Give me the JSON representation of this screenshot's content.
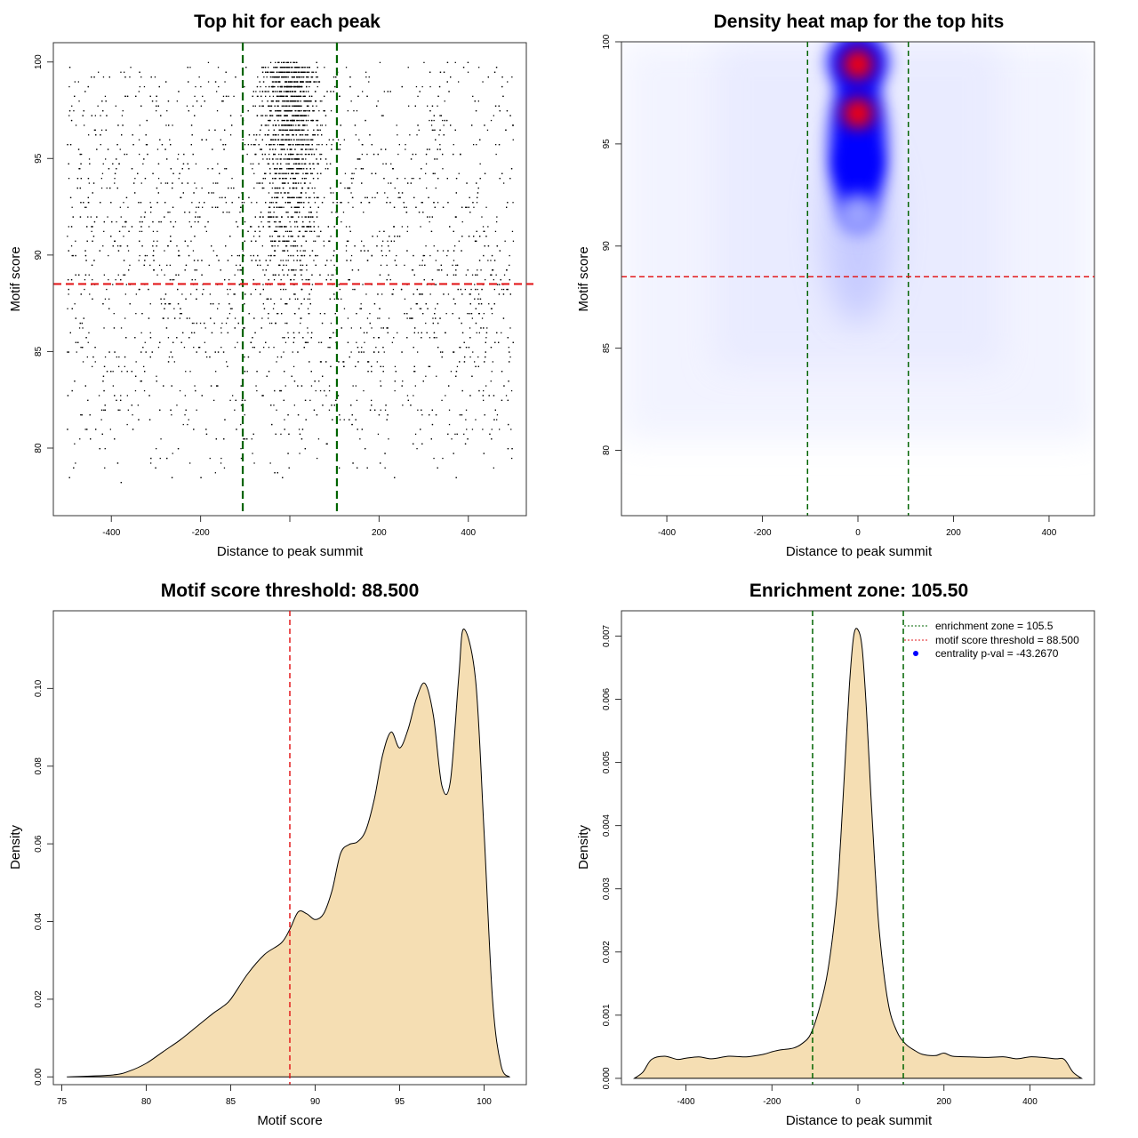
{
  "chart_data": [
    {
      "id": "scatter",
      "type": "scatter",
      "title": "Top hit for each peak",
      "xlabel": "Distance to peak summit",
      "ylabel": "Motif score",
      "xlim": [
        -530,
        530
      ],
      "ylim": [
        76.5,
        101
      ],
      "xticks": [
        -400,
        -200,
        0,
        200,
        400
      ],
      "xtick_labels": [
        "-400",
        "-200",
        "",
        "200",
        "400"
      ],
      "yticks": [
        80,
        85,
        90,
        95,
        100
      ],
      "ytick_labels": [
        "80",
        "85",
        "90",
        "95",
        "100"
      ],
      "vlines": [
        -105.5,
        105.5
      ],
      "vline_color": "#006400",
      "hline": 88.5,
      "hline_color": "#e31a1c",
      "points_description": "One point per peak: x in [-500, 500] distance to summit, y motif score; points concentrated near x = 0 with high scores, sparse below 85."
    },
    {
      "id": "heatmap",
      "type": "heatmap",
      "title": "Density heat map for the top hits",
      "xlabel": "Distance to peak summit",
      "ylabel": "Motif score",
      "xlim": [
        -495,
        495
      ],
      "ylim": [
        76.8,
        100
      ],
      "xticks": [
        -400,
        -200,
        0,
        200,
        400
      ],
      "xtick_labels": [
        "-400",
        "-200",
        "0",
        "200",
        "400"
      ],
      "yticks": [
        80,
        85,
        90,
        95,
        100
      ],
      "ytick_labels": [
        "80",
        "85",
        "90",
        "95",
        "100"
      ],
      "vlines": [
        -105.5,
        105.5
      ],
      "vline_color": "#006400",
      "hline": 88.5,
      "hline_color": "#e31a1c",
      "hotspots": [
        {
          "x": 0,
          "y": 98.9,
          "level": "red"
        },
        {
          "x": 0,
          "y": 96.5,
          "level": "red"
        },
        {
          "x": 0,
          "y": 94.0,
          "level": "blue"
        },
        {
          "x": 0,
          "y": 91.5,
          "level": "blue-light"
        }
      ],
      "color_scale": [
        "#ffffff",
        "#0000ff",
        "#ff0000"
      ]
    },
    {
      "id": "score_density",
      "type": "area",
      "title": "Motif score threshold: 88.500",
      "xlabel": "Motif score",
      "ylabel": "Density",
      "xlim": [
        74.5,
        102.5
      ],
      "ylim": [
        -0.002,
        0.12
      ],
      "xticks": [
        75,
        80,
        85,
        90,
        95,
        100
      ],
      "xtick_labels": [
        "75",
        "80",
        "85",
        "90",
        "95",
        "100"
      ],
      "yticks": [
        0,
        0.02,
        0.04,
        0.06,
        0.08,
        0.1
      ],
      "ytick_labels": [
        "0.00",
        "0.02",
        "0.04",
        "0.06",
        "0.08",
        "0.10"
      ],
      "x": [
        75.3,
        78,
        79,
        80,
        81,
        82,
        83,
        84,
        84.5,
        85,
        86,
        87,
        88,
        88.5,
        89,
        89.5,
        90,
        90.5,
        91,
        91.5,
        92,
        92.5,
        93,
        93.5,
        94,
        94.5,
        95,
        95.5,
        96,
        96.5,
        97,
        97.5,
        98,
        98.5,
        98.8,
        99.5,
        100,
        100.5,
        101,
        101.5
      ],
      "y": [
        0,
        0.0005,
        0.0015,
        0.0035,
        0.0065,
        0.0095,
        0.013,
        0.0165,
        0.018,
        0.02,
        0.0265,
        0.0315,
        0.0345,
        0.038,
        0.0425,
        0.042,
        0.0405,
        0.042,
        0.048,
        0.0575,
        0.0598,
        0.0605,
        0.0635,
        0.0715,
        0.083,
        0.0888,
        0.0847,
        0.0895,
        0.0975,
        0.1013,
        0.093,
        0.075,
        0.076,
        0.103,
        0.1153,
        0.102,
        0.063,
        0.02,
        0.003,
        0
      ],
      "fill": "#f5deb3",
      "vline": 88.5,
      "vline_color": "#e31a1c"
    },
    {
      "id": "distance_density",
      "type": "area",
      "title": "Enrichment zone: 105.50",
      "xlabel": "Distance to peak summit",
      "ylabel": "Density",
      "xlim": [
        -550,
        550
      ],
      "ylim": [
        -0.0001,
        0.0074
      ],
      "xticks": [
        -400,
        -200,
        0,
        200,
        400
      ],
      "xtick_labels": [
        "-400",
        "-200",
        "0",
        "200",
        "400"
      ],
      "yticks": [
        0,
        0.001,
        0.002,
        0.003,
        0.004,
        0.005,
        0.006,
        0.007
      ],
      "ytick_labels": [
        "0.000",
        "0.001",
        "0.002",
        "0.003",
        "0.004",
        "0.005",
        "0.006",
        "0.007"
      ],
      "x": [
        -520,
        -500,
        -480,
        -450,
        -420,
        -400,
        -370,
        -340,
        -300,
        -260,
        -220,
        -200,
        -180,
        -150,
        -130,
        -110,
        -90,
        -70,
        -50,
        -40,
        -30,
        -20,
        -10,
        0,
        10,
        20,
        30,
        40,
        50,
        70,
        90,
        110,
        130,
        150,
        180,
        200,
        220,
        260,
        300,
        340,
        370,
        400,
        430,
        460,
        480,
        500,
        520
      ],
      "y": [
        0.0,
        0.0001,
        0.0003,
        0.00035,
        0.0003,
        0.00032,
        0.00034,
        0.00031,
        0.00035,
        0.00034,
        0.00038,
        0.00042,
        0.00045,
        0.00048,
        0.00055,
        0.0007,
        0.0011,
        0.0017,
        0.0028,
        0.0038,
        0.005,
        0.0062,
        0.007,
        0.0071,
        0.0068,
        0.0058,
        0.0045,
        0.0033,
        0.0023,
        0.0012,
        0.00075,
        0.00055,
        0.00045,
        0.00038,
        0.00036,
        0.0004,
        0.00035,
        0.00034,
        0.00033,
        0.00034,
        0.00031,
        0.00034,
        0.00033,
        0.00031,
        0.0003,
        0.0001,
        0.0
      ],
      "fill": "#f5deb3",
      "vlines": [
        -105.5,
        105.5
      ],
      "vline_color": "#006400",
      "legend": {
        "position": "top-right",
        "entries": [
          {
            "label": "enrichment zone = 105.5",
            "color": "#006400",
            "style": "dotted"
          },
          {
            "label": "motif score threshold = 88.500",
            "color": "#e31a1c",
            "style": "dotted"
          },
          {
            "label": "centrality p-val = -43.2670",
            "color": "#0000ff",
            "style": "point"
          }
        ]
      }
    }
  ]
}
